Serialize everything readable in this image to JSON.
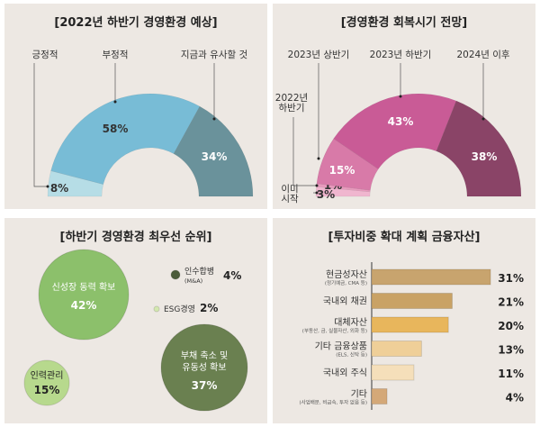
{
  "colors": {
    "panel_bg": "#ede8e3"
  },
  "chart_data": [
    {
      "type": "pie",
      "variant": "half-donut",
      "title": "[2022년 하반기 경영환경 예상]",
      "slices": [
        {
          "label": "긍정적",
          "value": 8,
          "value_label": "8%",
          "color": "#b6dde6"
        },
        {
          "label": "부정적",
          "value": 58,
          "value_label": "58%",
          "color": "#78bcd6"
        },
        {
          "label": "지금과 유사할 것",
          "value": 34,
          "value_label": "34%",
          "color": "#6a929b"
        }
      ]
    },
    {
      "type": "pie",
      "variant": "half-donut",
      "title": "[경영환경 회복시기 전망]",
      "slices": [
        {
          "label": "이미 시작",
          "value": 3,
          "value_label": "3%",
          "color": "#f0b6cf"
        },
        {
          "label": "2022년 하반기",
          "value": 1,
          "value_label": "1%",
          "color": "#e89abd"
        },
        {
          "label": "2023년 상반기",
          "value": 15,
          "value_label": "15%",
          "color": "#d87aa8"
        },
        {
          "label": "2023년 하반기",
          "value": 43,
          "value_label": "43%",
          "color": "#c95b96"
        },
        {
          "label": "2024년 이후",
          "value": 38,
          "value_label": "38%",
          "color": "#8a4467"
        }
      ]
    },
    {
      "type": "bubble",
      "title": "[하반기 경영환경 최우선 순위]",
      "items": [
        {
          "label": "신성장 동력 확보",
          "value": 42,
          "value_label": "42%",
          "color": "#8cc06b"
        },
        {
          "label": "부채 축소 및 유동성 확보",
          "value": 37,
          "value_label": "37%",
          "color": "#6a8050"
        },
        {
          "label": "인력관리",
          "value": 15,
          "value_label": "15%",
          "color": "#b7d98d"
        },
        {
          "label": "인수합병 (M&A)",
          "value": 4,
          "value_label": "4%",
          "color": "#4b5c3a"
        },
        {
          "label": "ESG경영",
          "value": 2,
          "value_label": "2%",
          "color": "#d4e8b0"
        }
      ]
    },
    {
      "type": "bar",
      "orientation": "horizontal",
      "title": "[투자비중 확대 계획 금융자산]",
      "categories": [
        "현금성자산",
        "국내외 채권",
        "대체자산",
        "기타 금융상품",
        "국내외 주식",
        "기타"
      ],
      "subtitles": [
        "(정기예금, CMA 등)",
        "",
        "(부동산, 금, 실물자산, 외화 등)",
        "(ELS, 신탁 등)",
        "",
        "(사업배분, 비금속, 투자 없음 등)"
      ],
      "values": [
        31,
        21,
        20,
        13,
        11,
        4
      ],
      "value_labels": [
        "31%",
        "21%",
        "20%",
        "13%",
        "11%",
        "4%"
      ],
      "colors": [
        "#c8a46e",
        "#c9a265",
        "#e8b65c",
        "#efcf98",
        "#f5dfba",
        "#d4a878"
      ]
    }
  ]
}
